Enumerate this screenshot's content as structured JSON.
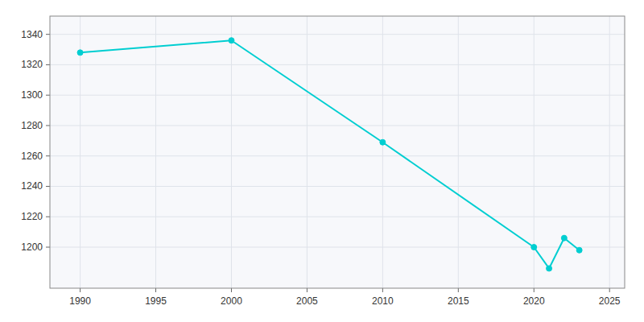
{
  "chart_data": {
    "type": "line",
    "x": [
      1990,
      2000,
      2010,
      2020,
      2021,
      2022,
      2023
    ],
    "values": [
      1328,
      1336,
      1269,
      1200,
      1186,
      1206,
      1198
    ],
    "color": "#00CED1",
    "marker": "circle",
    "xlim": [
      1988,
      2026
    ],
    "ylim": [
      1173,
      1352
    ],
    "xticks": [
      1990,
      1995,
      2000,
      2005,
      2010,
      2015,
      2020,
      2025
    ],
    "yticks": [
      1200,
      1220,
      1240,
      1260,
      1280,
      1300,
      1320,
      1340
    ],
    "grid": true
  }
}
